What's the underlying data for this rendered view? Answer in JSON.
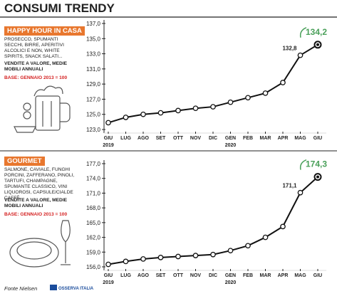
{
  "title": "CONSUMI TRENDY",
  "source": "Fonte Nielsen",
  "logo": "OSSERVA ITALIA",
  "chart_data": [
    {
      "type": "line",
      "title": "HAPPY HOUR IN CASA",
      "description": "PROSECCO, SPUMANTI SECCHI, BIRRE, APERITIVI ALCOLICI E NON, WHITE SPIRITS, SNACK SALATI...",
      "measure": "VENDITE A VALORE, MEDIE MOBILI ANNUALI",
      "base": "BASE: GENNAIO 2013 = 100",
      "categories": [
        "GIU",
        "LUG",
        "AGO",
        "SET",
        "OTT",
        "NOV",
        "DIC",
        "GEN",
        "FEB",
        "MAR",
        "APR",
        "MAG",
        "GIU"
      ],
      "years": [
        "2019",
        null,
        null,
        null,
        null,
        null,
        null,
        "2020",
        null,
        null,
        null,
        null,
        null
      ],
      "values": [
        123.9,
        124.6,
        125.0,
        125.2,
        125.5,
        125.8,
        126.0,
        126.6,
        127.2,
        127.8,
        129.2,
        132.8,
        134.2
      ],
      "value_labels": [
        null,
        null,
        null,
        null,
        null,
        null,
        null,
        null,
        null,
        null,
        null,
        "132,8",
        "134,2"
      ],
      "color": "#111111",
      "ylim": [
        123,
        137
      ],
      "yticks": [
        {
          "value": 123,
          "label": "123,0"
        },
        {
          "value": 125,
          "label": "125,0"
        },
        {
          "value": 127,
          "label": "127,0"
        },
        {
          "value": 129,
          "label": "129,0"
        },
        {
          "value": 131,
          "label": "131,0"
        },
        {
          "value": 133,
          "label": "133,0"
        },
        {
          "value": 135,
          "label": "135,0"
        },
        {
          "value": 137,
          "label": "137,0"
        }
      ]
    },
    {
      "type": "line",
      "title": "GOURMET",
      "description": "SALMONE, CAVIALE, FUNGHI PORCINI, ZAFFERANO, PINOLI, TARTUFI, CHAMPAGNE, SPUMANTE CLASSICO, VINI LIQUOROSI, CAPSULE/CIALDE CAFFÈ",
      "measure": "VENDITE A VALORE, MEDIE MOBILI ANNUALI",
      "base": "BASE: GENNAIO 2013 = 100",
      "categories": [
        "GIU",
        "LUG",
        "AGO",
        "SET",
        "OTT",
        "NOV",
        "DIC",
        "GEN",
        "FEB",
        "MAR",
        "APR",
        "MAG",
        "GIU"
      ],
      "years": [
        "2019",
        null,
        null,
        null,
        null,
        null,
        null,
        "2020",
        null,
        null,
        null,
        null,
        null
      ],
      "values": [
        156.5,
        157.1,
        157.6,
        157.9,
        158.1,
        158.3,
        158.5,
        159.3,
        160.3,
        162.0,
        164.2,
        171.1,
        174.3
      ],
      "value_labels": [
        null,
        null,
        null,
        null,
        null,
        null,
        null,
        null,
        null,
        null,
        null,
        "171,1",
        "174,3"
      ],
      "color": "#111111",
      "ylim": [
        156,
        177
      ],
      "yticks": [
        {
          "value": 156,
          "label": "156,0"
        },
        {
          "value": 159,
          "label": "159,0"
        },
        {
          "value": 162,
          "label": "162,0"
        },
        {
          "value": 165,
          "label": "165,0"
        },
        {
          "value": 168,
          "label": "168,0"
        },
        {
          "value": 171,
          "label": "171,0"
        },
        {
          "value": 174,
          "label": "174,0"
        },
        {
          "value": 177,
          "label": "177,0"
        }
      ]
    }
  ]
}
